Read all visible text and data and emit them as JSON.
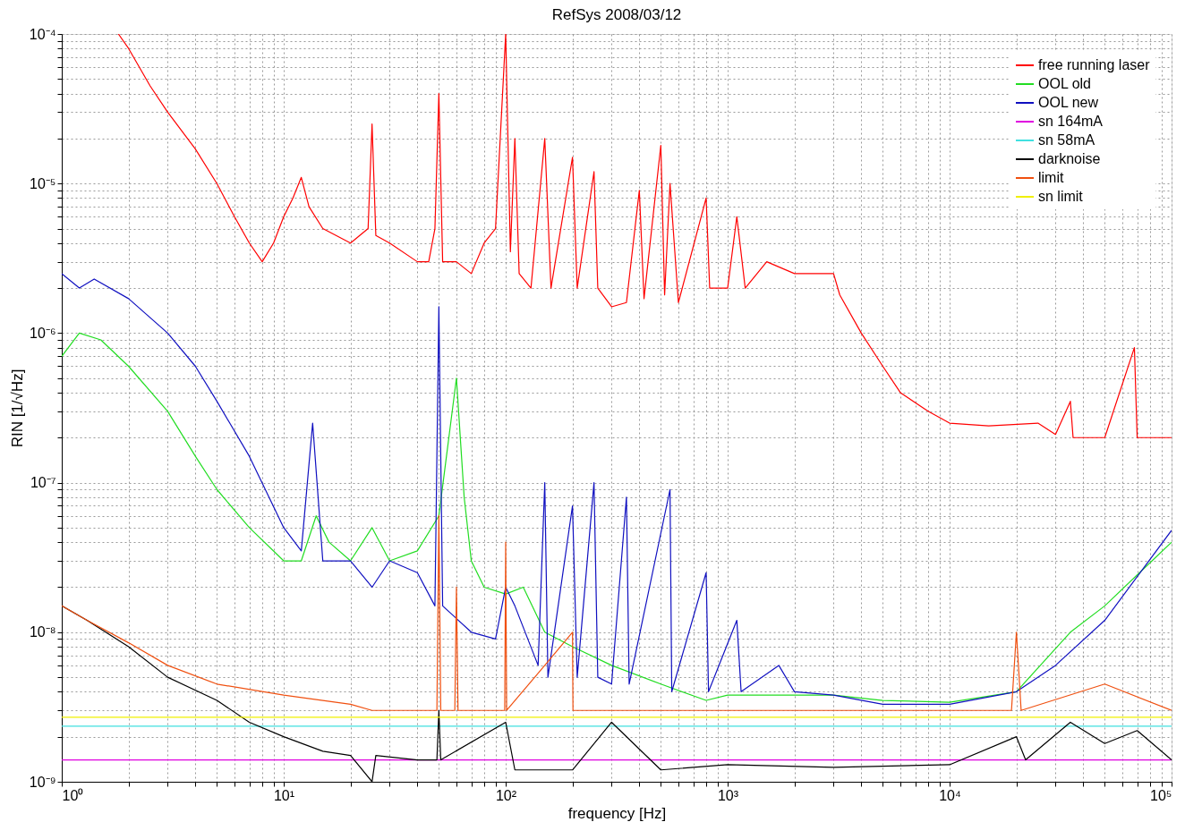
{
  "chart_data": {
    "type": "line",
    "title": "RefSys 2008/03/12",
    "xlabel": "frequency [Hz]",
    "ylabel": "RIN [1/√Hz]",
    "log": "xy",
    "grid": true,
    "legend": "top right",
    "xlim": [
      1,
      100000
    ],
    "ylim": [
      1e-09,
      0.0001
    ],
    "xticks": [
      {
        "value": 1,
        "label": "10⁰"
      },
      {
        "value": 2,
        "label": null
      },
      {
        "value": 3,
        "label": null
      },
      {
        "value": 4,
        "label": null
      },
      {
        "value": 5,
        "label": null
      },
      {
        "value": 6,
        "label": null
      },
      {
        "value": 7,
        "label": null
      },
      {
        "value": 8,
        "label": null
      },
      {
        "value": 9,
        "label": null
      },
      {
        "value": 10,
        "label": "10¹"
      },
      {
        "value": 20,
        "label": null
      },
      {
        "value": 30,
        "label": null
      },
      {
        "value": 40,
        "label": null
      },
      {
        "value": 50,
        "label": null
      },
      {
        "value": 60,
        "label": null
      },
      {
        "value": 70,
        "label": null
      },
      {
        "value": 80,
        "label": null
      },
      {
        "value": 90,
        "label": null
      },
      {
        "value": 100,
        "label": "10²"
      },
      {
        "value": 200,
        "label": null
      },
      {
        "value": 300,
        "label": null
      },
      {
        "value": 400,
        "label": null
      },
      {
        "value": 500,
        "label": null
      },
      {
        "value": 600,
        "label": null
      },
      {
        "value": 700,
        "label": null
      },
      {
        "value": 800,
        "label": null
      },
      {
        "value": 900,
        "label": null
      },
      {
        "value": 1000,
        "label": "10³"
      },
      {
        "value": 2000,
        "label": null
      },
      {
        "value": 3000,
        "label": null
      },
      {
        "value": 4000,
        "label": null
      },
      {
        "value": 5000,
        "label": null
      },
      {
        "value": 6000,
        "label": null
      },
      {
        "value": 7000,
        "label": null
      },
      {
        "value": 8000,
        "label": null
      },
      {
        "value": 9000,
        "label": null
      },
      {
        "value": 10000,
        "label": "10⁴"
      },
      {
        "value": 20000,
        "label": null
      },
      {
        "value": 30000,
        "label": null
      },
      {
        "value": 40000,
        "label": null
      },
      {
        "value": 50000,
        "label": null
      },
      {
        "value": 60000,
        "label": null
      },
      {
        "value": 70000,
        "label": null
      },
      {
        "value": 80000,
        "label": null
      },
      {
        "value": 90000,
        "label": null
      },
      {
        "value": 100000,
        "label": "10⁵"
      }
    ],
    "yticks": [
      {
        "value": 1e-09,
        "label": "10⁻⁹"
      },
      {
        "value": 2e-09,
        "label": null
      },
      {
        "value": 3e-09,
        "label": null
      },
      {
        "value": 4e-09,
        "label": null
      },
      {
        "value": 5e-09,
        "label": null
      },
      {
        "value": 6e-09,
        "label": null
      },
      {
        "value": 7e-09,
        "label": null
      },
      {
        "value": 8e-09,
        "label": null
      },
      {
        "value": 9e-09,
        "label": null
      },
      {
        "value": 1e-08,
        "label": "10⁻⁸"
      },
      {
        "value": 2e-08,
        "label": null
      },
      {
        "value": 3e-08,
        "label": null
      },
      {
        "value": 4e-08,
        "label": null
      },
      {
        "value": 5e-08,
        "label": null
      },
      {
        "value": 6e-08,
        "label": null
      },
      {
        "value": 7e-08,
        "label": null
      },
      {
        "value": 8e-08,
        "label": null
      },
      {
        "value": 9e-08,
        "label": null
      },
      {
        "value": 1e-07,
        "label": "10⁻⁷"
      },
      {
        "value": 2e-07,
        "label": null
      },
      {
        "value": 3e-07,
        "label": null
      },
      {
        "value": 4e-07,
        "label": null
      },
      {
        "value": 5e-07,
        "label": null
      },
      {
        "value": 6e-07,
        "label": null
      },
      {
        "value": 7e-07,
        "label": null
      },
      {
        "value": 8e-07,
        "label": null
      },
      {
        "value": 9e-07,
        "label": null
      },
      {
        "value": 1e-06,
        "label": "10⁻⁶"
      },
      {
        "value": 2e-06,
        "label": null
      },
      {
        "value": 3e-06,
        "label": null
      },
      {
        "value": 4e-06,
        "label": null
      },
      {
        "value": 5e-06,
        "label": null
      },
      {
        "value": 6e-06,
        "label": null
      },
      {
        "value": 7e-06,
        "label": null
      },
      {
        "value": 8e-06,
        "label": null
      },
      {
        "value": 9e-06,
        "label": null
      },
      {
        "value": 1e-05,
        "label": "10⁻⁵"
      },
      {
        "value": 2e-05,
        "label": null
      },
      {
        "value": 3e-05,
        "label": null
      },
      {
        "value": 4e-05,
        "label": null
      },
      {
        "value": 5e-05,
        "label": null
      },
      {
        "value": 6e-05,
        "label": null
      },
      {
        "value": 7e-05,
        "label": null
      },
      {
        "value": 8e-05,
        "label": null
      },
      {
        "value": 9e-05,
        "label": null
      },
      {
        "value": 0.0001,
        "label": "10⁻⁴"
      }
    ],
    "series": [
      {
        "name": "free running laser",
        "color": "#ff0000",
        "x": [
          1.8,
          2,
          2.5,
          3,
          4,
          5,
          6,
          7,
          8,
          9,
          10,
          11,
          12,
          13,
          15,
          20,
          24,
          25,
          26,
          30,
          40,
          45,
          48,
          50,
          52,
          60,
          70,
          80,
          90,
          100,
          105,
          110,
          115,
          130,
          150,
          160,
          200,
          210,
          250,
          260,
          300,
          350,
          400,
          420,
          500,
          520,
          550,
          600,
          800,
          830,
          1000,
          1100,
          1200,
          1500,
          2000,
          3000,
          3200,
          4000,
          5000,
          6000,
          8000,
          10000,
          15000,
          25000,
          30000,
          35000,
          36000,
          50000,
          68000,
          70000,
          100000
        ],
        "values": [
          0.0001,
          8e-05,
          4.5e-05,
          3e-05,
          1.7e-05,
          1e-05,
          6e-06,
          4e-06,
          3e-06,
          4e-06,
          6e-06,
          8e-06,
          1.1e-05,
          7e-06,
          5e-06,
          4e-06,
          5e-06,
          2.5e-05,
          4.5e-06,
          4e-06,
          3e-06,
          3e-06,
          5e-06,
          4e-05,
          3e-06,
          3e-06,
          2.5e-06,
          4e-06,
          5e-06,
          0.0001,
          3.5e-06,
          2e-05,
          2.5e-06,
          2e-06,
          2e-05,
          2e-06,
          1.5e-05,
          2e-06,
          1.2e-05,
          2e-06,
          1.5e-06,
          1.6e-06,
          9e-06,
          1.7e-06,
          1.8e-05,
          1.8e-06,
          1e-05,
          1.6e-06,
          8e-06,
          2e-06,
          2e-06,
          6e-06,
          2e-06,
          3e-06,
          2.5e-06,
          2.5e-06,
          1.8e-06,
          1e-06,
          6e-07,
          4e-07,
          3e-07,
          2.5e-07,
          2.4e-07,
          2.5e-07,
          2.1e-07,
          3.5e-07,
          2e-07,
          2e-07,
          8e-07,
          2e-07,
          2e-07
        ]
      },
      {
        "name": "OOL old",
        "color": "#22dd22",
        "x": [
          1,
          1.2,
          1.5,
          2,
          3,
          4,
          5,
          7,
          10,
          12,
          14,
          16,
          20,
          25,
          30,
          40,
          50,
          60,
          65,
          70,
          80,
          100,
          120,
          150,
          200,
          300,
          500,
          800,
          1000,
          3000,
          5000,
          10000,
          20000,
          35000,
          50000,
          100000
        ],
        "values": [
          7e-07,
          1e-06,
          9e-07,
          6e-07,
          3e-07,
          1.5e-07,
          9e-08,
          5e-08,
          3e-08,
          3e-08,
          6e-08,
          4e-08,
          3e-08,
          5e-08,
          3e-08,
          3.5e-08,
          6e-08,
          5e-07,
          8e-08,
          3e-08,
          2e-08,
          1.8e-08,
          2e-08,
          1e-08,
          8e-09,
          6e-09,
          4.5e-09,
          3.5e-09,
          3.8e-09,
          3.8e-09,
          3.5e-09,
          3.4e-09,
          4e-09,
          1e-08,
          1.5e-08,
          4e-08
        ]
      },
      {
        "name": "OOL new",
        "color": "#1010c0",
        "x": [
          1,
          1.2,
          1.4,
          2,
          3,
          4,
          5,
          7,
          10,
          12,
          13.5,
          15,
          20,
          25,
          30,
          40,
          48,
          50,
          52,
          70,
          90,
          100,
          110,
          140,
          150,
          155,
          200,
          210,
          250,
          260,
          300,
          350,
          360,
          550,
          560,
          800,
          820,
          1100,
          1150,
          1700,
          2000,
          3000,
          5000,
          10000,
          20000,
          30000,
          50000,
          100000
        ],
        "values": [
          2.5e-06,
          2e-06,
          2.3e-06,
          1.7e-06,
          1e-06,
          6e-07,
          3.5e-07,
          1.5e-07,
          5e-08,
          3.5e-08,
          2.5e-07,
          3e-08,
          3e-08,
          2e-08,
          3e-08,
          2.5e-08,
          1.5e-08,
          1.5e-06,
          1.5e-08,
          1e-08,
          9e-09,
          2e-08,
          1.5e-08,
          6e-09,
          1e-07,
          5e-09,
          7e-08,
          5e-09,
          1e-07,
          5e-09,
          4.5e-09,
          8e-08,
          4.5e-09,
          9e-08,
          4e-09,
          2.5e-08,
          4e-09,
          1.2e-08,
          4e-09,
          6e-09,
          4e-09,
          3.8e-09,
          3.3e-09,
          3.3e-09,
          4e-09,
          6e-09,
          1.2e-08,
          4.8e-08
        ]
      },
      {
        "name": "sn 164mA",
        "color": "#e000e0",
        "x": [
          1,
          100000
        ],
        "values": [
          1.4e-09,
          1.4e-09
        ]
      },
      {
        "name": "sn 58mA",
        "color": "#40e0e0",
        "x": [
          1,
          100000
        ],
        "values": [
          2.35e-09,
          2.35e-09
        ]
      },
      {
        "name": "darknoise",
        "color": "#000000",
        "x": [
          1,
          1.3,
          2,
          3,
          5,
          7,
          10,
          15,
          20,
          25,
          26,
          40,
          49,
          50,
          51,
          100,
          110,
          200,
          300,
          500,
          1000,
          3000,
          10000,
          20000,
          22000,
          35000,
          50000,
          70000,
          100000
        ],
        "values": [
          1.5e-08,
          1.2e-08,
          8e-09,
          5e-09,
          3.5e-09,
          2.5e-09,
          2e-09,
          1.6e-09,
          1.5e-09,
          1e-09,
          1.5e-09,
          1.4e-09,
          1.4e-09,
          3e-09,
          1.4e-09,
          2.5e-09,
          1.2e-09,
          1.2e-09,
          2.5e-09,
          1.2e-09,
          1.3e-09,
          1.25e-09,
          1.3e-09,
          2e-09,
          1.4e-09,
          2.5e-09,
          1.8e-09,
          2.2e-09,
          1.4e-09
        ]
      },
      {
        "name": "limit",
        "color": "#f05010",
        "x": [
          1,
          1.3,
          2,
          3,
          5,
          10,
          20,
          25,
          49,
          50,
          51,
          59,
          60,
          61,
          99,
          100,
          101,
          150,
          200,
          201,
          1000,
          19000,
          20000,
          21000,
          50000,
          100000
        ],
        "values": [
          1.5e-08,
          1.2e-08,
          8.5e-09,
          6e-09,
          4.5e-09,
          3.8e-09,
          3.3e-09,
          3e-09,
          3e-09,
          6e-08,
          3e-09,
          3e-09,
          2e-08,
          3e-09,
          3e-09,
          4e-08,
          3e-09,
          6e-09,
          1e-08,
          3e-09,
          3e-09,
          3e-09,
          1e-08,
          3e-09,
          4.5e-09,
          3e-09
        ]
      },
      {
        "name": "sn limit",
        "color": "#f0f000",
        "x": [
          1,
          100000
        ],
        "values": [
          2.7e-09,
          2.7e-09
        ]
      }
    ]
  }
}
